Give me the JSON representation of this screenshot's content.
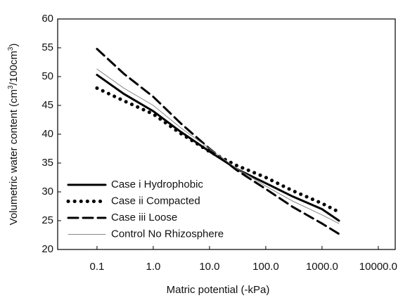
{
  "chart_data": {
    "type": "line",
    "xlabel": "Matric potential (-kPa)",
    "ylabel": [
      "Volumetric water content (cm",
      "3",
      "/100cm",
      "3",
      ")"
    ],
    "xscale": "log",
    "x": [
      0.1,
      0.3,
      1,
      3,
      10,
      30,
      100,
      300,
      1000,
      2000
    ],
    "series": [
      {
        "name": "Case i Hydrophobic",
        "color": "#000000",
        "style": "solid",
        "width": 3,
        "values": [
          50.3,
          47,
          44,
          40.5,
          37,
          34,
          31.5,
          29.2,
          27,
          25
        ]
      },
      {
        "name": "Case ii Compacted",
        "color": "#000000",
        "style": "dotted",
        "width": 5,
        "values": [
          48,
          45.8,
          43.5,
          40.2,
          37,
          34.6,
          32.5,
          30.2,
          28,
          26.5
        ]
      },
      {
        "name": "Case iii Loose",
        "color": "#000000",
        "style": "dashed",
        "width": 3,
        "values": [
          54.8,
          50.5,
          46.5,
          42,
          37.5,
          33.8,
          30.5,
          27.4,
          24.5,
          22.7
        ]
      },
      {
        "name": "Control No Rhizosphere",
        "color": "#888888",
        "style": "solid",
        "width": 1,
        "values": [
          51.3,
          48,
          45,
          41.2,
          37.5,
          34.1,
          31,
          28.4,
          26,
          24.5
        ]
      }
    ],
    "xlim": [
      0.02,
      20000
    ],
    "xticks": [
      0.1,
      {
        "value": 1,
        "label": "1.0"
      },
      {
        "value": 10,
        "label": "10.0"
      },
      {
        "value": 100,
        "label": "100.0"
      },
      {
        "value": 1000,
        "label": "1000.0"
      },
      {
        "value": 10000,
        "label": "10000.0"
      }
    ],
    "ylim": [
      20,
      60
    ],
    "yticks": [
      20,
      25,
      30,
      35,
      40,
      45,
      50,
      55,
      60
    ],
    "grid": false,
    "legend": "lower left"
  }
}
